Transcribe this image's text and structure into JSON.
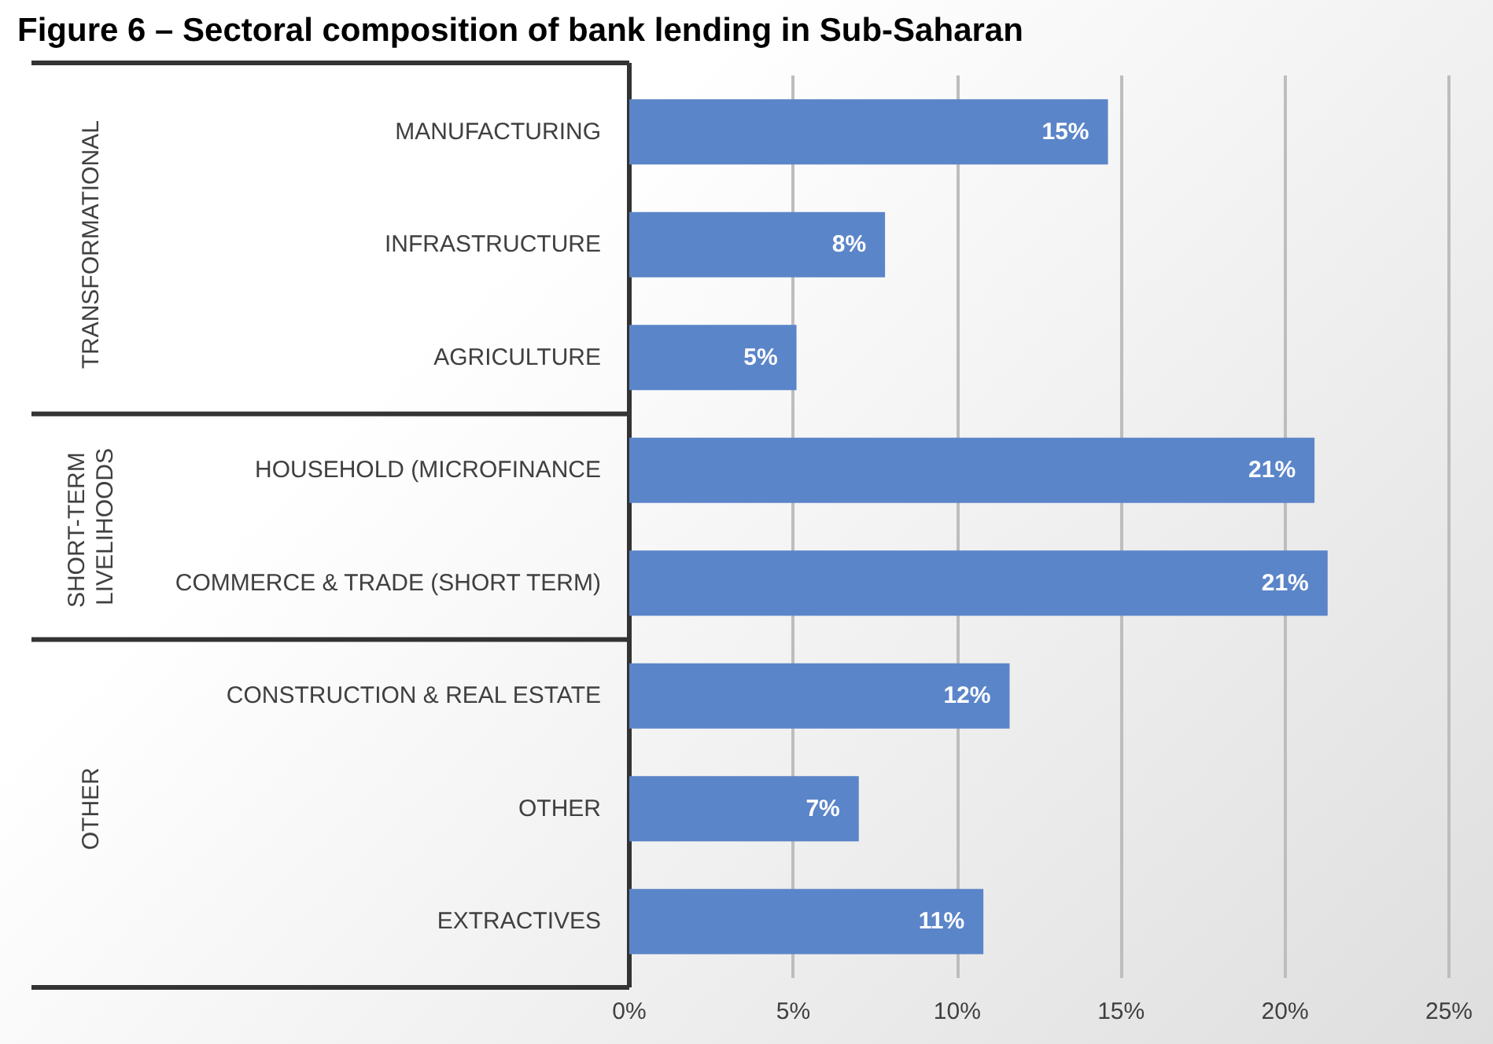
{
  "chart_data": {
    "type": "bar",
    "orientation": "horizontal",
    "title": "Figure 6 – Sectoral composition of bank lending in Sub-Saharan",
    "categories": [
      "MANUFACTURING",
      "INFRASTRUCTURE",
      "AGRICULTURE",
      "HOUSEHOLD (MICROFINANCE",
      "COMMERCE & TRADE (SHORT TERM)",
      "CONSTRUCTION & REAL ESTATE",
      "OTHER",
      "EXTRACTIVES"
    ],
    "values": [
      14.6,
      7.8,
      5.1,
      20.9,
      21.3,
      11.6,
      7.0,
      10.8
    ],
    "value_labels": [
      "15%",
      "8%",
      "5%",
      "21%",
      "21%",
      "12%",
      "7%",
      "11%"
    ],
    "color": "#5b85c9",
    "xlim": [
      0,
      25
    ],
    "xticks": [
      {
        "value": 0,
        "label": "0%"
      },
      {
        "value": 5,
        "label": "5%"
      },
      {
        "value": 10,
        "label": "10%"
      },
      {
        "value": 15,
        "label": "15%"
      },
      {
        "value": 20,
        "label": "20%"
      },
      {
        "value": 25,
        "label": "25%"
      }
    ],
    "grid": "x",
    "annotations": [
      "TRANSFORMATIONAL",
      "SHORT-TERM LIVELIHOODS",
      "OTHER"
    ]
  }
}
